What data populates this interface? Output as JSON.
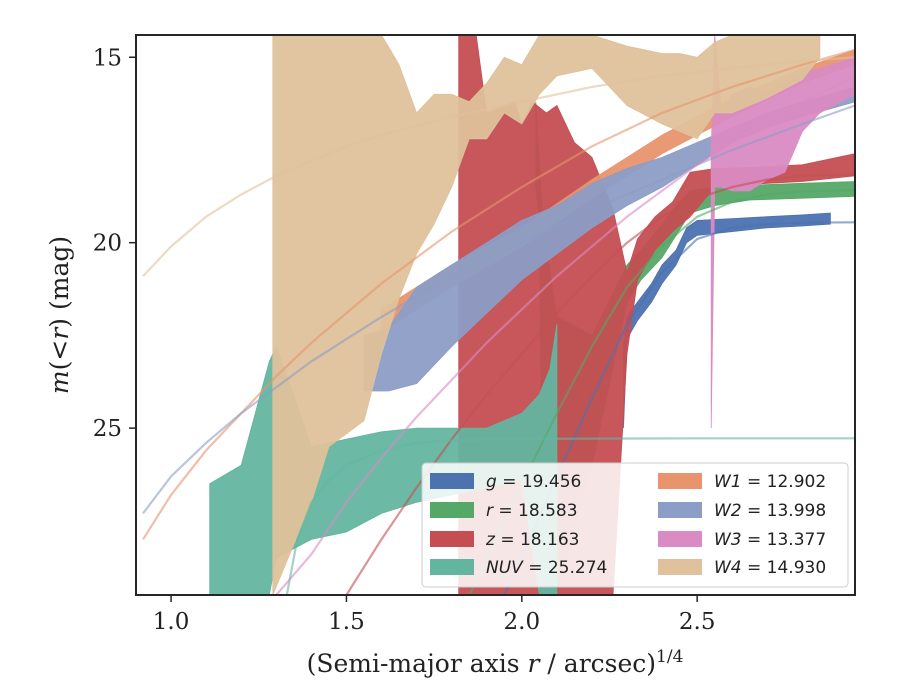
{
  "chart_data": {
    "type": "area",
    "xlabel": "(Semi-major axis r / arcsec)^1/4",
    "ylabel": "m(<r) (mag)",
    "xlim": [
      0.9,
      2.95
    ],
    "ylim": [
      29.5,
      14.4
    ],
    "y_inverted": true,
    "xticks": [
      "1.0",
      "1.5",
      "2.0",
      "2.5"
    ],
    "xtick_values": [
      1.0,
      1.5,
      2.0,
      2.5
    ],
    "yticks": [
      "15",
      "20",
      "25"
    ],
    "ytick_values": [
      15,
      20,
      25
    ],
    "legend_position": "lower-right",
    "series": [
      {
        "name": "g = 19.456",
        "color": "#4c72b0",
        "band": [
          [
            2.29,
            25.0,
            22.7
          ],
          [
            2.3,
            22.6,
            22.0
          ],
          [
            2.33,
            22.1,
            21.6
          ],
          [
            2.37,
            21.6,
            21.1
          ],
          [
            2.4,
            21.1,
            20.6
          ],
          [
            2.44,
            20.6,
            20.2
          ],
          [
            2.47,
            20.0,
            19.6
          ],
          [
            2.5,
            19.8,
            19.4
          ],
          [
            2.6,
            19.7,
            19.35
          ],
          [
            2.7,
            19.6,
            19.3
          ],
          [
            2.8,
            19.55,
            19.25
          ],
          [
            2.88,
            19.5,
            19.2
          ]
        ],
        "curve": [
          [
            1.95,
            29.5
          ],
          [
            2.0,
            28.5
          ],
          [
            2.1,
            26.3
          ],
          [
            2.2,
            24.2
          ],
          [
            2.3,
            22.2
          ],
          [
            2.4,
            20.8
          ],
          [
            2.5,
            19.9
          ],
          [
            2.6,
            19.6
          ],
          [
            2.7,
            19.5
          ],
          [
            2.8,
            19.46
          ],
          [
            2.95,
            19.45
          ]
        ]
      },
      {
        "name": "r = 18.583",
        "color": "#55a868",
        "band": [
          [
            2.04,
            18.5,
            16.2
          ],
          [
            2.05,
            19.5,
            17.8
          ],
          [
            2.06,
            29.5,
            19.5
          ],
          [
            2.1,
            29.5,
            22.0
          ],
          [
            2.2,
            26.0,
            22.5
          ],
          [
            2.3,
            21.6,
            20.6
          ],
          [
            2.34,
            21.0,
            20.2
          ],
          [
            2.4,
            20.4,
            19.5
          ],
          [
            2.44,
            19.8,
            19.0
          ],
          [
            2.48,
            19.2,
            18.6
          ],
          [
            2.55,
            19.0,
            18.5
          ],
          [
            2.65,
            18.85,
            18.45
          ],
          [
            2.8,
            18.8,
            18.4
          ],
          [
            2.95,
            18.75,
            18.35
          ]
        ],
        "curve": [
          [
            1.85,
            29.5
          ],
          [
            1.9,
            28.6
          ],
          [
            2.0,
            26.5
          ],
          [
            2.1,
            24.6
          ],
          [
            2.2,
            22.8
          ],
          [
            2.3,
            21.2
          ],
          [
            2.4,
            20.1
          ],
          [
            2.5,
            19.3
          ],
          [
            2.6,
            18.9
          ],
          [
            2.7,
            18.7
          ],
          [
            2.8,
            18.62
          ],
          [
            2.95,
            18.58
          ]
        ]
      },
      {
        "name": "z = 18.163",
        "color": "#c44e52",
        "band": [
          [
            1.82,
            29.5,
            14.4
          ],
          [
            1.87,
            29.5,
            14.4
          ],
          [
            1.9,
            29.5,
            16.5
          ],
          [
            1.98,
            29.5,
            16.2
          ],
          [
            2.0,
            29.5,
            16.8
          ],
          [
            2.03,
            29.5,
            16.2
          ],
          [
            2.07,
            29.5,
            16.5
          ],
          [
            2.1,
            29.5,
            16.3
          ],
          [
            2.15,
            29.5,
            17.3
          ],
          [
            2.2,
            29.5,
            17.7
          ],
          [
            2.26,
            29.5,
            19.1
          ],
          [
            2.3,
            23.0,
            20.8
          ],
          [
            2.33,
            21.0,
            19.9
          ],
          [
            2.38,
            20.2,
            19.3
          ],
          [
            2.43,
            19.7,
            18.9
          ],
          [
            2.48,
            19.3,
            18.1
          ],
          [
            2.55,
            18.5,
            18.0
          ],
          [
            2.7,
            18.4,
            17.95
          ],
          [
            2.8,
            18.35,
            17.9
          ],
          [
            2.95,
            18.2,
            17.6
          ]
        ],
        "curve": [
          [
            1.5,
            29.5
          ],
          [
            1.6,
            28.0
          ],
          [
            1.7,
            26.6
          ],
          [
            1.8,
            25.3
          ],
          [
            1.9,
            24.1
          ],
          [
            2.0,
            23.0
          ],
          [
            2.1,
            21.9
          ],
          [
            2.2,
            20.9
          ],
          [
            2.3,
            20.0
          ],
          [
            2.4,
            19.3
          ],
          [
            2.5,
            18.8
          ],
          [
            2.6,
            18.5
          ],
          [
            2.7,
            18.3
          ],
          [
            2.8,
            18.2
          ],
          [
            2.95,
            18.16
          ]
        ]
      },
      {
        "name": "NUV = 25.274",
        "color": "#64b5a0",
        "band": [
          [
            1.11,
            29.5,
            26.5
          ],
          [
            1.2,
            29.5,
            26.0
          ],
          [
            1.28,
            29.5,
            23.2
          ],
          [
            1.3,
            28.5,
            22.8
          ],
          [
            1.4,
            28.0,
            25.5
          ],
          [
            1.5,
            27.8,
            25.3
          ],
          [
            1.6,
            27.3,
            25.1
          ],
          [
            1.7,
            27.0,
            25.0
          ],
          [
            1.8,
            26.8,
            25.0
          ],
          [
            1.9,
            26.6,
            25.0
          ],
          [
            2.0,
            26.4,
            24.6
          ],
          [
            2.05,
            29.5,
            24.1
          ],
          [
            2.08,
            29.5,
            23.4
          ],
          [
            2.1,
            29.5,
            22.2
          ]
        ],
        "curve": [
          [
            1.33,
            29.5
          ],
          [
            1.36,
            28.0
          ],
          [
            1.4,
            27.0
          ],
          [
            1.45,
            26.4
          ],
          [
            1.5,
            26.0
          ],
          [
            1.6,
            25.6
          ],
          [
            1.7,
            25.4
          ],
          [
            1.8,
            25.33
          ],
          [
            2.0,
            25.29
          ],
          [
            2.5,
            25.275
          ],
          [
            2.95,
            25.274
          ]
        ]
      },
      {
        "name": "W1 = 12.902",
        "color": "#e8956d",
        "band": [
          [
            1.6,
            22.4,
            21.8
          ],
          [
            1.8,
            21.2,
            20.6
          ],
          [
            2.0,
            20.1,
            19.6
          ],
          [
            2.2,
            18.8,
            18.3
          ],
          [
            2.4,
            17.6,
            17.1
          ],
          [
            2.6,
            16.6,
            16.1
          ],
          [
            2.8,
            15.7,
            15.3
          ],
          [
            2.95,
            15.2,
            14.8
          ]
        ],
        "curve": [
          [
            0.92,
            28.0
          ],
          [
            1.0,
            26.8
          ],
          [
            1.1,
            25.6
          ],
          [
            1.2,
            24.6
          ],
          [
            1.3,
            23.6
          ],
          [
            1.4,
            22.7
          ],
          [
            1.5,
            21.9
          ],
          [
            1.6,
            21.1
          ],
          [
            1.8,
            19.7
          ],
          [
            2.0,
            18.5
          ],
          [
            2.2,
            17.4
          ],
          [
            2.4,
            16.5
          ],
          [
            2.6,
            15.8
          ],
          [
            2.8,
            15.2
          ],
          [
            2.95,
            14.8
          ]
        ]
      },
      {
        "name": "W2 = 13.998",
        "color": "#8c9dc6",
        "band": [
          [
            1.55,
            24.0,
            22.5
          ],
          [
            1.62,
            24.0,
            22.3
          ],
          [
            1.7,
            23.8,
            21.2
          ],
          [
            1.8,
            22.8,
            20.6
          ],
          [
            1.9,
            21.9,
            20.0
          ],
          [
            2.0,
            21.0,
            19.4
          ],
          [
            2.1,
            20.3,
            19.0
          ],
          [
            2.2,
            19.6,
            18.4
          ],
          [
            2.3,
            19.0,
            18.0
          ],
          [
            2.4,
            18.5,
            17.7
          ],
          [
            2.5,
            17.9,
            17.3
          ],
          [
            2.6,
            17.3,
            16.9
          ],
          [
            2.7,
            16.9,
            16.5
          ],
          [
            2.8,
            16.6,
            16.2
          ],
          [
            2.95,
            16.2,
            15.8
          ]
        ],
        "curve": [
          [
            0.92,
            27.3
          ],
          [
            1.0,
            26.3
          ],
          [
            1.1,
            25.4
          ],
          [
            1.2,
            24.6
          ],
          [
            1.3,
            23.9
          ],
          [
            1.4,
            23.2
          ],
          [
            1.5,
            22.6
          ],
          [
            1.6,
            22.0
          ],
          [
            1.8,
            20.9
          ],
          [
            2.0,
            20.0
          ],
          [
            2.2,
            19.1
          ],
          [
            2.4,
            18.3
          ],
          [
            2.6,
            17.5
          ],
          [
            2.8,
            16.8
          ],
          [
            2.95,
            16.3
          ]
        ]
      },
      {
        "name": "W3 = 13.377",
        "color": "#da8bc3",
        "band": [
          [
            2.54,
            25.0,
            17.5
          ],
          [
            2.55,
            18.5,
            14.4
          ],
          [
            2.57,
            18.5,
            16.5
          ],
          [
            2.6,
            18.6,
            16.0
          ],
          [
            2.65,
            18.6,
            15.8
          ],
          [
            2.7,
            18.3,
            16.0
          ],
          [
            2.75,
            18.1,
            15.6
          ],
          [
            2.8,
            17.0,
            15.4
          ],
          [
            2.85,
            16.5,
            15.3
          ],
          [
            2.95,
            16.0,
            15.0
          ]
        ],
        "curve": [
          [
            1.3,
            29.5
          ],
          [
            1.4,
            28.4
          ],
          [
            1.5,
            27.0
          ],
          [
            1.6,
            25.8
          ],
          [
            1.7,
            24.7
          ],
          [
            1.8,
            23.7
          ],
          [
            1.9,
            22.7
          ],
          [
            2.0,
            21.8
          ],
          [
            2.1,
            20.9
          ],
          [
            2.2,
            20.1
          ],
          [
            2.3,
            19.3
          ],
          [
            2.4,
            18.6
          ],
          [
            2.5,
            17.9
          ],
          [
            2.6,
            17.3
          ],
          [
            2.7,
            16.7
          ],
          [
            2.8,
            16.2
          ],
          [
            2.95,
            15.5
          ]
        ]
      },
      {
        "name": "W4 = 14.930",
        "color": "#dfc19b",
        "band": [
          [
            1.29,
            29.5,
            14.4
          ],
          [
            1.4,
            27.0,
            14.4
          ],
          [
            1.45,
            25.5,
            14.4
          ],
          [
            1.55,
            24.8,
            14.4
          ],
          [
            1.6,
            23.0,
            14.4
          ],
          [
            1.65,
            21.5,
            15.2
          ],
          [
            1.7,
            20.3,
            16.5
          ],
          [
            1.75,
            19.5,
            16.0
          ],
          [
            1.8,
            18.5,
            16.0
          ],
          [
            1.85,
            17.2,
            16.2
          ],
          [
            1.9,
            17.2,
            15.7
          ],
          [
            1.95,
            16.5,
            15.0
          ],
          [
            2.0,
            16.8,
            15.2
          ],
          [
            2.05,
            16.0,
            14.4
          ],
          [
            2.1,
            15.5,
            14.4
          ],
          [
            2.2,
            15.3,
            14.4
          ],
          [
            2.3,
            16.3,
            14.7
          ],
          [
            2.4,
            16.8,
            14.9
          ],
          [
            2.45,
            17.0,
            14.9
          ],
          [
            2.5,
            17.2,
            15.0
          ],
          [
            2.55,
            16.5,
            14.6
          ],
          [
            2.6,
            16.5,
            14.4
          ],
          [
            2.7,
            16.1,
            14.4
          ],
          [
            2.8,
            15.6,
            14.4
          ],
          [
            2.85,
            15.0,
            14.4
          ]
        ],
        "curve": [
          [
            0.92,
            20.9
          ],
          [
            1.0,
            20.1
          ],
          [
            1.1,
            19.3
          ],
          [
            1.2,
            18.7
          ],
          [
            1.3,
            18.2
          ],
          [
            1.4,
            17.8
          ],
          [
            1.5,
            17.4
          ],
          [
            1.6,
            17.1
          ],
          [
            1.8,
            16.6
          ],
          [
            2.0,
            16.2
          ],
          [
            2.2,
            15.8
          ],
          [
            2.4,
            15.5
          ],
          [
            2.6,
            15.3
          ],
          [
            2.8,
            15.1
          ],
          [
            2.95,
            15.0
          ]
        ]
      }
    ]
  }
}
